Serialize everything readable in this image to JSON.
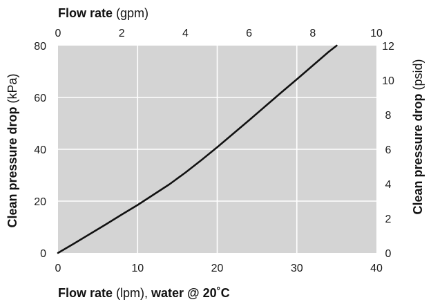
{
  "chart_data": {
    "type": "line",
    "colors": {
      "plot_background": "#d4d4d4",
      "gridline": "#ffffff",
      "series_line": "#111111"
    },
    "grid": true,
    "legend": "none",
    "xlim": [
      0,
      40
    ],
    "ylim": [
      0,
      80
    ],
    "x_ticks": [
      "0",
      "10",
      "20",
      "30",
      "40"
    ],
    "y_ticks": [
      "0",
      "20",
      "40",
      "60",
      "80"
    ],
    "x2lim": [
      0,
      10
    ],
    "x2_ticks": [
      "0",
      "2",
      "4",
      "6",
      "8",
      "10"
    ],
    "y2lim": [
      0,
      12
    ],
    "y2_ticks": [
      "0",
      "2",
      "4",
      "6",
      "8",
      "10",
      "12"
    ],
    "xlabel": {
      "bold": "Flow rate",
      "light": " (lpm), ",
      "bold2": "water @ 20˚C"
    },
    "x2label": {
      "bold": "Flow rate",
      "light": " (gpm)"
    },
    "ylabel": {
      "bold": "Clean pressure drop",
      "light": " (kPa)"
    },
    "y2label": {
      "bold": "Clean pressure drop",
      "light": " (psid)"
    },
    "series": [
      {
        "x": [
          0,
          2,
          4,
          6,
          8,
          10,
          12,
          14,
          16,
          18,
          20,
          22,
          24,
          26,
          28,
          30,
          32,
          34,
          35
        ],
        "y": [
          0,
          3.6,
          7.3,
          11.0,
          14.8,
          18.5,
          22.5,
          26.5,
          31.0,
          35.8,
          40.8,
          46.0,
          51.2,
          56.5,
          61.8,
          67.0,
          72.3,
          77.6,
          80
        ]
      }
    ]
  }
}
